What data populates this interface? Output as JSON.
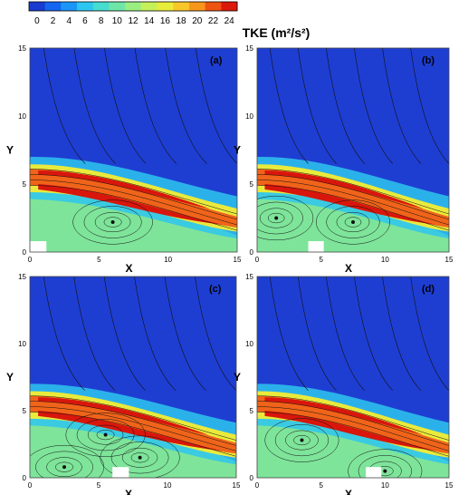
{
  "colorbar": {
    "title": "TKE (m²/s²)",
    "ticks": [
      "0",
      "2",
      "4",
      "6",
      "8",
      "10",
      "12",
      "14",
      "16",
      "18",
      "20",
      "22",
      "24"
    ],
    "colors": [
      "#1a3bd0",
      "#1466f0",
      "#1a96f8",
      "#2cc6f0",
      "#46dcd0",
      "#6ee6a8",
      "#9aee80",
      "#c6f05a",
      "#e8ec3a",
      "#f8c82a",
      "#f8961c",
      "#ee5412",
      "#dc1a0c"
    ]
  },
  "chart_data": [
    {
      "type": "heatmap",
      "panel_label": "(a)",
      "xlabel": "X",
      "ylabel": "Y",
      "xlim": [
        0,
        15
      ],
      "ylim": [
        0,
        15
      ],
      "xticks": [
        "0",
        "5",
        "10",
        "15"
      ],
      "yticks": [
        "0",
        "5",
        "10",
        "15"
      ],
      "obstacle": {
        "x": [
          0,
          1
        ],
        "y": [
          0,
          0.8
        ]
      },
      "vortices": [
        {
          "x": 6,
          "y": 2.2
        }
      ],
      "shear_layer": {
        "upper_y_at_x0": 6.1,
        "lower_y_at_x0": 4.9,
        "reattach_x": 14
      }
    },
    {
      "type": "heatmap",
      "panel_label": "(b)",
      "xlabel": "X",
      "ylabel": "Y",
      "xlim": [
        0,
        15
      ],
      "ylim": [
        0,
        15
      ],
      "xticks": [
        "0",
        "5",
        "10",
        "15"
      ],
      "yticks": [
        "0",
        "5",
        "10",
        "15"
      ],
      "obstacle": {
        "x": [
          4,
          5
        ],
        "y": [
          0,
          0.8
        ]
      },
      "vortices": [
        {
          "x": 1.5,
          "y": 2.5
        },
        {
          "x": 7.5,
          "y": 2.2
        }
      ],
      "shear_layer": {
        "upper_y_at_x0": 6.1,
        "lower_y_at_x0": 4.9,
        "reattach_x": 14
      }
    },
    {
      "type": "heatmap",
      "panel_label": "(c)",
      "xlabel": "X",
      "ylabel": "Y",
      "xlim": [
        0,
        15
      ],
      "ylim": [
        0,
        15
      ],
      "xticks": [
        "0",
        "5",
        "10",
        "15"
      ],
      "yticks": [
        "0",
        "5",
        "10",
        "15"
      ],
      "obstacle": {
        "x": [
          6,
          7
        ],
        "y": [
          0,
          0.8
        ]
      },
      "vortices": [
        {
          "x": 2.5,
          "y": 0.8
        },
        {
          "x": 5.5,
          "y": 3.2
        },
        {
          "x": 8,
          "y": 1.5
        }
      ],
      "shear_layer": {
        "upper_y_at_x0": 6.1,
        "lower_y_at_x0": 4.9,
        "reattach_x": 14
      }
    },
    {
      "type": "heatmap",
      "panel_label": "(d)",
      "xlabel": "X",
      "ylabel": "Y",
      "xlim": [
        0,
        15
      ],
      "ylim": [
        0,
        15
      ],
      "xticks": [
        "0",
        "5",
        "10",
        "15"
      ],
      "yticks": [
        "0",
        "5",
        "10",
        "15"
      ],
      "obstacle": {
        "x": [
          8.5,
          9.5
        ],
        "y": [
          0,
          0.8
        ]
      },
      "vortices": [
        {
          "x": 3.5,
          "y": 2.8
        },
        {
          "x": 10,
          "y": 0.5
        }
      ],
      "shear_layer": {
        "upper_y_at_x0": 6.1,
        "lower_y_at_x0": 4.9,
        "reattach_x": 14
      }
    }
  ]
}
